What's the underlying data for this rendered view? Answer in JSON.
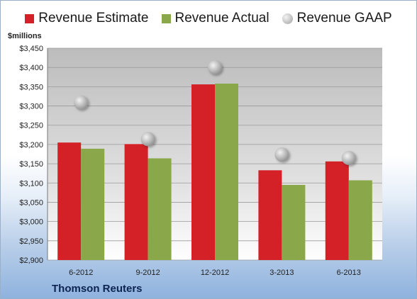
{
  "chart_data": {
    "type": "bar",
    "unit_label": "$millions",
    "categories": [
      "6-2012",
      "9-2012",
      "12-2012",
      "3-2013",
      "6-2013"
    ],
    "series": [
      {
        "name": "Revenue Estimate",
        "kind": "bar",
        "color": "#d42027",
        "values": [
          3205,
          3201,
          3356,
          3133,
          3156
        ]
      },
      {
        "name": "Revenue Actual",
        "kind": "bar",
        "color": "#8aa84a",
        "values": [
          3189,
          3164,
          3358,
          3095,
          3107
        ]
      },
      {
        "name": "Revenue GAAP",
        "kind": "marker",
        "color": "#b5b5b5",
        "values": [
          3309,
          3214,
          3400,
          3174,
          3165
        ]
      }
    ],
    "ylim": [
      2900,
      3450
    ],
    "yticks": [
      2900,
      2950,
      3000,
      3050,
      3100,
      3150,
      3200,
      3250,
      3300,
      3350,
      3400,
      3450
    ],
    "ytick_labels": [
      "$2,900",
      "$2,950",
      "$3,000",
      "$3,050",
      "$3,100",
      "$3,150",
      "$3,200",
      "$3,250",
      "$3,300",
      "$3,350",
      "$3,400",
      "$3,450"
    ],
    "grid": true,
    "legend_position": "top"
  },
  "source": "Thomson Reuters"
}
